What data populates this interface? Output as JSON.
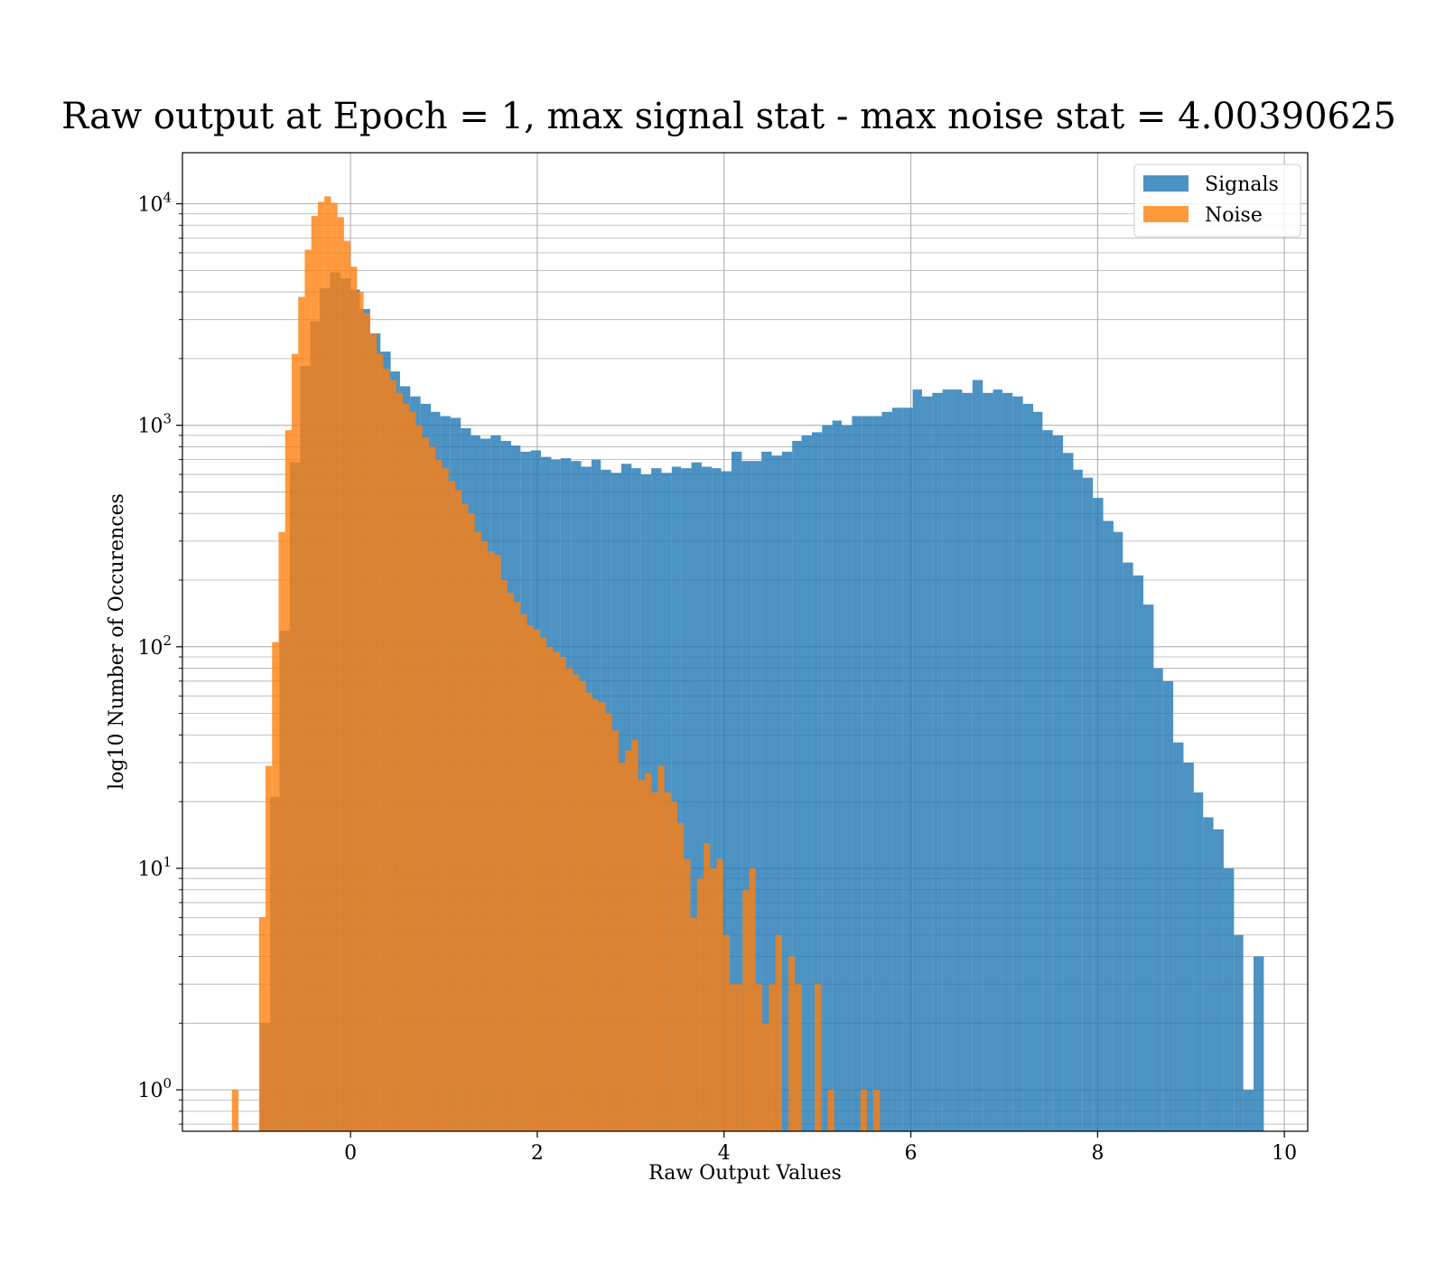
{
  "chart_data": {
    "type": "histogram",
    "title": "Raw output at Epoch = 1, max signal stat - max noise stat = 4.00390625",
    "xlabel": "Raw Output Values",
    "ylabel": "log10 Number of Occurences",
    "xlim": [
      -1.8,
      10.25
    ],
    "ylim": [
      0.65,
      17000
    ],
    "y_scale": "log",
    "grid": true,
    "legend_position": "top-right",
    "x_ticks": [
      0,
      2,
      4,
      6,
      8,
      10
    ],
    "x_tick_labels": [
      "0",
      "2",
      "4",
      "6",
      "8",
      "10"
    ],
    "y_ticks": [
      {
        "base": "10",
        "exp": "0",
        "value": 1
      },
      {
        "base": "10",
        "exp": "1",
        "value": 10
      },
      {
        "base": "10",
        "exp": "2",
        "value": 100
      },
      {
        "base": "10",
        "exp": "3",
        "value": 1000
      },
      {
        "base": "10",
        "exp": "4",
        "value": 10000
      }
    ],
    "series": [
      {
        "name": "Signals",
        "color": "#1f77b4",
        "opacity": 0.8,
        "bins": [
          [
            -0.97,
            -0.86,
            2
          ],
          [
            -0.86,
            -0.76,
            21
          ],
          [
            -0.76,
            -0.65,
            118
          ],
          [
            -0.65,
            -0.54,
            680
          ],
          [
            -0.54,
            -0.43,
            1850
          ],
          [
            -0.43,
            -0.33,
            2950
          ],
          [
            -0.33,
            -0.22,
            4150
          ],
          [
            -0.22,
            -0.11,
            4900
          ],
          [
            -0.11,
            0.0,
            4600
          ],
          [
            0.0,
            0.1,
            4100
          ],
          [
            0.1,
            0.21,
            3350
          ],
          [
            0.21,
            0.32,
            2600
          ],
          [
            0.32,
            0.43,
            2150
          ],
          [
            0.43,
            0.53,
            1750
          ],
          [
            0.53,
            0.64,
            1500
          ],
          [
            0.64,
            0.75,
            1350
          ],
          [
            0.75,
            0.86,
            1250
          ],
          [
            0.86,
            0.96,
            1150
          ],
          [
            0.96,
            1.07,
            1100
          ],
          [
            1.07,
            1.18,
            1080
          ],
          [
            1.18,
            1.29,
            970
          ],
          [
            1.29,
            1.39,
            900
          ],
          [
            1.39,
            1.5,
            870
          ],
          [
            1.5,
            1.61,
            900
          ],
          [
            1.61,
            1.72,
            850
          ],
          [
            1.72,
            1.82,
            810
          ],
          [
            1.82,
            1.93,
            760
          ],
          [
            1.93,
            2.04,
            770
          ],
          [
            2.04,
            2.15,
            720
          ],
          [
            2.15,
            2.25,
            700
          ],
          [
            2.25,
            2.36,
            710
          ],
          [
            2.36,
            2.47,
            690
          ],
          [
            2.47,
            2.58,
            650
          ],
          [
            2.58,
            2.68,
            700
          ],
          [
            2.68,
            2.79,
            630
          ],
          [
            2.79,
            2.9,
            610
          ],
          [
            2.9,
            3.01,
            670
          ],
          [
            3.01,
            3.11,
            640
          ],
          [
            3.11,
            3.22,
            600
          ],
          [
            3.22,
            3.33,
            640
          ],
          [
            3.33,
            3.44,
            610
          ],
          [
            3.44,
            3.54,
            650
          ],
          [
            3.54,
            3.65,
            640
          ],
          [
            3.65,
            3.76,
            680
          ],
          [
            3.76,
            3.87,
            650
          ],
          [
            3.87,
            3.97,
            640
          ],
          [
            3.97,
            4.08,
            620
          ],
          [
            4.08,
            4.19,
            760
          ],
          [
            4.19,
            4.3,
            690
          ],
          [
            4.3,
            4.4,
            690
          ],
          [
            4.4,
            4.51,
            760
          ],
          [
            4.51,
            4.62,
            730
          ],
          [
            4.62,
            4.73,
            760
          ],
          [
            4.73,
            4.83,
            850
          ],
          [
            4.83,
            4.94,
            900
          ],
          [
            4.94,
            5.05,
            930
          ],
          [
            5.05,
            5.16,
            1000
          ],
          [
            5.16,
            5.26,
            1050
          ],
          [
            5.26,
            5.37,
            1000
          ],
          [
            5.37,
            5.48,
            1100
          ],
          [
            5.48,
            5.59,
            1100
          ],
          [
            5.59,
            5.69,
            1100
          ],
          [
            5.69,
            5.8,
            1150
          ],
          [
            5.8,
            5.91,
            1200
          ],
          [
            5.91,
            6.02,
            1200
          ],
          [
            6.02,
            6.12,
            1450
          ],
          [
            6.12,
            6.23,
            1350
          ],
          [
            6.23,
            6.34,
            1400
          ],
          [
            6.34,
            6.45,
            1450
          ],
          [
            6.45,
            6.55,
            1450
          ],
          [
            6.55,
            6.66,
            1400
          ],
          [
            6.66,
            6.77,
            1600
          ],
          [
            6.77,
            6.88,
            1400
          ],
          [
            6.88,
            6.98,
            1450
          ],
          [
            6.98,
            7.09,
            1400
          ],
          [
            7.09,
            7.2,
            1350
          ],
          [
            7.2,
            7.31,
            1250
          ],
          [
            7.31,
            7.41,
            1150
          ],
          [
            7.41,
            7.52,
            950
          ],
          [
            7.52,
            7.63,
            900
          ],
          [
            7.63,
            7.74,
            750
          ],
          [
            7.74,
            7.84,
            630
          ],
          [
            7.84,
            7.95,
            580
          ],
          [
            7.95,
            8.06,
            470
          ],
          [
            8.06,
            8.17,
            370
          ],
          [
            8.17,
            8.27,
            330
          ],
          [
            8.27,
            8.38,
            240
          ],
          [
            8.38,
            8.49,
            210
          ],
          [
            8.49,
            8.6,
            155
          ],
          [
            8.6,
            8.7,
            80
          ],
          [
            8.7,
            8.81,
            70
          ],
          [
            8.81,
            8.92,
            37
          ],
          [
            8.92,
            9.03,
            30
          ],
          [
            9.03,
            9.13,
            22
          ],
          [
            9.13,
            9.24,
            17
          ],
          [
            9.24,
            9.35,
            15
          ],
          [
            9.35,
            9.46,
            10
          ],
          [
            9.46,
            9.56,
            5
          ],
          [
            9.56,
            9.67,
            1
          ],
          [
            9.67,
            9.78,
            4
          ]
        ]
      },
      {
        "name": "Noise",
        "color": "#ff7f0e",
        "opacity": 0.8,
        "bins": [
          [
            -1.27,
            -1.2,
            1
          ],
          [
            -0.98,
            -0.91,
            6
          ],
          [
            -0.91,
            -0.84,
            29
          ],
          [
            -0.84,
            -0.77,
            105
          ],
          [
            -0.77,
            -0.7,
            330
          ],
          [
            -0.7,
            -0.63,
            950
          ],
          [
            -0.63,
            -0.56,
            2100
          ],
          [
            -0.56,
            -0.49,
            3800
          ],
          [
            -0.49,
            -0.42,
            6200
          ],
          [
            -0.42,
            -0.35,
            8800
          ],
          [
            -0.35,
            -0.28,
            10200
          ],
          [
            -0.28,
            -0.21,
            10800
          ],
          [
            -0.21,
            -0.14,
            10100
          ],
          [
            -0.14,
            -0.07,
            8700
          ],
          [
            -0.07,
            0.0,
            6800
          ],
          [
            0.0,
            0.07,
            5200
          ],
          [
            0.07,
            0.14,
            4000
          ],
          [
            0.14,
            0.21,
            3200
          ],
          [
            0.21,
            0.28,
            2600
          ],
          [
            0.28,
            0.35,
            2100
          ],
          [
            0.35,
            0.42,
            1800
          ],
          [
            0.42,
            0.49,
            1600
          ],
          [
            0.49,
            0.56,
            1400
          ],
          [
            0.56,
            0.63,
            1250
          ],
          [
            0.63,
            0.7,
            1150
          ],
          [
            0.7,
            0.77,
            1000
          ],
          [
            0.77,
            0.84,
            880
          ],
          [
            0.84,
            0.91,
            800
          ],
          [
            0.91,
            0.98,
            700
          ],
          [
            0.98,
            1.05,
            640
          ],
          [
            1.05,
            1.12,
            560
          ],
          [
            1.12,
            1.19,
            510
          ],
          [
            1.19,
            1.26,
            440
          ],
          [
            1.26,
            1.33,
            400
          ],
          [
            1.33,
            1.4,
            330
          ],
          [
            1.4,
            1.47,
            300
          ],
          [
            1.47,
            1.54,
            270
          ],
          [
            1.54,
            1.61,
            260
          ],
          [
            1.61,
            1.68,
            200
          ],
          [
            1.68,
            1.75,
            175
          ],
          [
            1.75,
            1.82,
            160
          ],
          [
            1.82,
            1.89,
            140
          ],
          [
            1.89,
            1.96,
            125
          ],
          [
            1.96,
            2.03,
            120
          ],
          [
            2.03,
            2.1,
            110
          ],
          [
            2.1,
            2.17,
            100
          ],
          [
            2.17,
            2.24,
            95
          ],
          [
            2.24,
            2.31,
            90
          ],
          [
            2.31,
            2.38,
            80
          ],
          [
            2.38,
            2.45,
            75
          ],
          [
            2.45,
            2.52,
            70
          ],
          [
            2.52,
            2.59,
            62
          ],
          [
            2.59,
            2.66,
            58
          ],
          [
            2.66,
            2.73,
            56
          ],
          [
            2.73,
            2.8,
            50
          ],
          [
            2.8,
            2.87,
            42
          ],
          [
            2.87,
            2.94,
            30
          ],
          [
            2.94,
            3.01,
            34
          ],
          [
            3.01,
            3.08,
            38
          ],
          [
            3.08,
            3.15,
            25
          ],
          [
            3.15,
            3.22,
            27
          ],
          [
            3.22,
            3.29,
            22
          ],
          [
            3.29,
            3.36,
            29
          ],
          [
            3.36,
            3.43,
            22
          ],
          [
            3.43,
            3.5,
            20
          ],
          [
            3.5,
            3.57,
            16
          ],
          [
            3.57,
            3.64,
            11
          ],
          [
            3.64,
            3.71,
            6
          ],
          [
            3.71,
            3.78,
            9
          ],
          [
            3.78,
            3.85,
            13
          ],
          [
            3.85,
            3.92,
            10
          ],
          [
            3.92,
            3.99,
            11
          ],
          [
            3.99,
            4.06,
            5
          ],
          [
            4.06,
            4.13,
            3
          ],
          [
            4.13,
            4.2,
            3
          ],
          [
            4.2,
            4.27,
            8
          ],
          [
            4.27,
            4.34,
            10
          ],
          [
            4.34,
            4.41,
            3
          ],
          [
            4.41,
            4.48,
            2
          ],
          [
            4.48,
            4.55,
            3
          ],
          [
            4.55,
            4.62,
            5
          ],
          [
            4.62,
            4.69,
            0
          ],
          [
            4.69,
            4.76,
            4
          ],
          [
            4.76,
            4.83,
            3
          ],
          [
            4.83,
            4.9,
            0
          ],
          [
            4.9,
            4.97,
            0
          ],
          [
            4.97,
            5.04,
            3
          ],
          [
            5.04,
            5.11,
            0
          ],
          [
            5.11,
            5.18,
            1
          ],
          [
            5.18,
            5.25,
            0
          ],
          [
            5.25,
            5.32,
            0
          ],
          [
            5.32,
            5.39,
            0
          ],
          [
            5.39,
            5.46,
            0
          ],
          [
            5.46,
            5.53,
            1
          ],
          [
            5.53,
            5.6,
            0
          ],
          [
            5.6,
            5.67,
            1
          ]
        ]
      }
    ]
  }
}
